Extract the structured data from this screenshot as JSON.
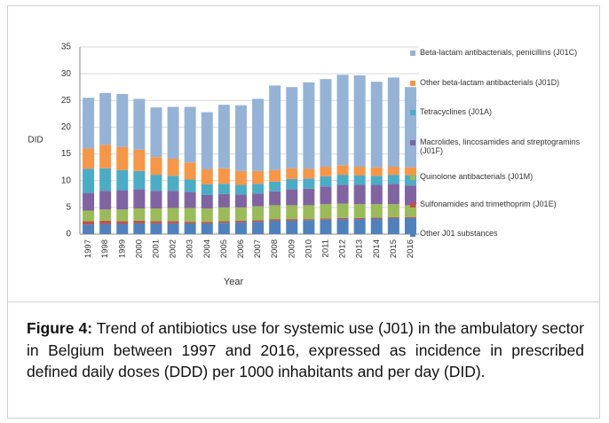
{
  "chart_data": {
    "type": "stacked_bar",
    "y_label": "DID",
    "x_label": "Year",
    "categories": [
      "1997",
      "1998",
      "1999",
      "2000",
      "2001",
      "2002",
      "2003",
      "2004",
      "2005",
      "2006",
      "2007",
      "2008",
      "2009",
      "2010",
      "2011",
      "2012",
      "2013",
      "2014",
      "2015",
      "2016"
    ],
    "series": [
      {
        "name": "Other J01 substances",
        "color": "#4f81bd",
        "values": [
          1.8,
          1.9,
          1.9,
          2.0,
          2.0,
          2.0,
          2.0,
          2.0,
          2.1,
          2.2,
          2.3,
          2.5,
          2.5,
          2.6,
          2.7,
          2.8,
          2.8,
          2.9,
          3.0,
          3.0
        ]
      },
      {
        "name": "Sulfonamides and trimethoprim (J01E)",
        "color": "#c0504d",
        "values": [
          0.6,
          0.6,
          0.5,
          0.5,
          0.4,
          0.4,
          0.3,
          0.3,
          0.3,
          0.3,
          0.3,
          0.3,
          0.3,
          0.2,
          0.2,
          0.2,
          0.2,
          0.2,
          0.2,
          0.2
        ]
      },
      {
        "name": "Quinolone antibacterials (J01M)",
        "color": "#9bbb59",
        "values": [
          2.0,
          2.1,
          2.2,
          2.3,
          2.4,
          2.5,
          2.6,
          2.5,
          2.6,
          2.5,
          2.6,
          2.6,
          2.6,
          2.6,
          2.7,
          2.7,
          2.6,
          2.5,
          2.4,
          2.2
        ]
      },
      {
        "name": "Macrolides, lincosamides and streptogramins (J01F)",
        "color": "#8064a2",
        "values": [
          3.3,
          3.5,
          3.6,
          3.6,
          3.3,
          3.2,
          3.0,
          2.5,
          2.5,
          2.4,
          2.4,
          2.6,
          3.0,
          3.1,
          3.3,
          3.5,
          3.6,
          3.6,
          3.8,
          3.7
        ]
      },
      {
        "name": "Tetracyclines (J01A)",
        "color": "#4bacc6",
        "values": [
          4.5,
          4.2,
          3.8,
          3.4,
          3.0,
          2.8,
          2.3,
          2.0,
          1.9,
          1.8,
          1.8,
          1.8,
          1.9,
          1.9,
          1.9,
          1.9,
          1.8,
          1.7,
          1.7,
          1.9
        ]
      },
      {
        "name": "Other beta-lactam antibacterials (J01D)",
        "color": "#f79646",
        "values": [
          3.8,
          4.4,
          4.3,
          4.0,
          3.3,
          3.2,
          3.2,
          2.8,
          2.9,
          2.6,
          2.4,
          2.2,
          2.0,
          1.8,
          1.8,
          1.8,
          1.6,
          1.6,
          1.5,
          1.5
        ]
      },
      {
        "name": "Beta-lactam antibacterials, penicillins (J01C)",
        "color": "#95b3d7",
        "values": [
          9.5,
          9.7,
          9.9,
          9.5,
          9.3,
          9.7,
          10.4,
          10.7,
          11.9,
          12.3,
          13.5,
          15.8,
          15.2,
          16.2,
          16.4,
          16.9,
          17.1,
          16.0,
          16.7,
          15.0
        ]
      }
    ],
    "ylim": [
      0,
      35
    ],
    "yticks": [
      0,
      5,
      10,
      15,
      20,
      25,
      30,
      35
    ],
    "grid": true
  },
  "caption": {
    "label": "Figure 4:",
    "text": "Trend of antibiotics use for systemic use (J01) in the ambulatory sector in Belgium between 1997 and 2016, expressed as incidence in prescribed defined daily doses (DDD) per 1000 inhabitants and per day (DID)."
  }
}
